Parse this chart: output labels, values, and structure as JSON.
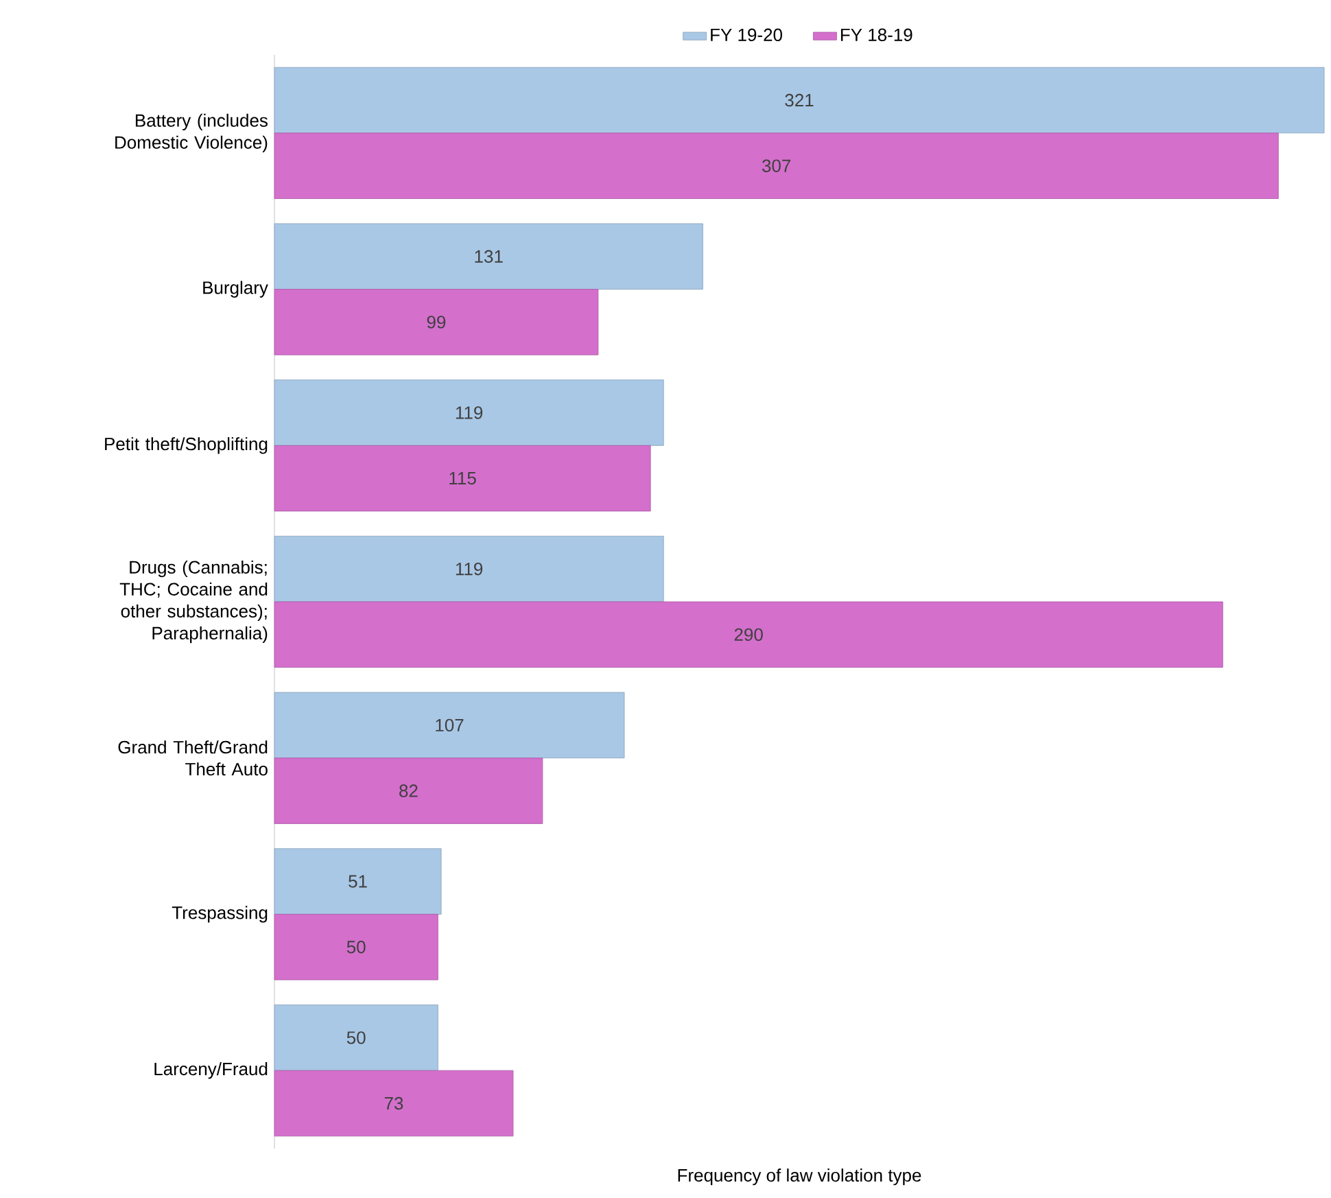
{
  "chart_data": {
    "type": "bar",
    "orientation": "horizontal",
    "xlabel": "Frequency of law violation type",
    "categories": [
      "Battery (includes Domestic Violence)",
      "Burglary",
      "Petit theft/Shoplifting",
      "Drugs (Cannabis; THC; Cocaine and other substances); Paraphernalia)",
      "Grand Theft/Grand Theft Auto",
      "Trespassing",
      "Larceny/Fraud"
    ],
    "series": [
      {
        "name": "FY 19-20",
        "color": "#a9c8e6",
        "values": [
          321,
          131,
          119,
          119,
          107,
          51,
          50
        ]
      },
      {
        "name": "FY 18-19",
        "color": "#d46fcc",
        "values": [
          307,
          99,
          115,
          290,
          82,
          50,
          73
        ]
      }
    ],
    "data_labels": true,
    "legend": "top"
  }
}
